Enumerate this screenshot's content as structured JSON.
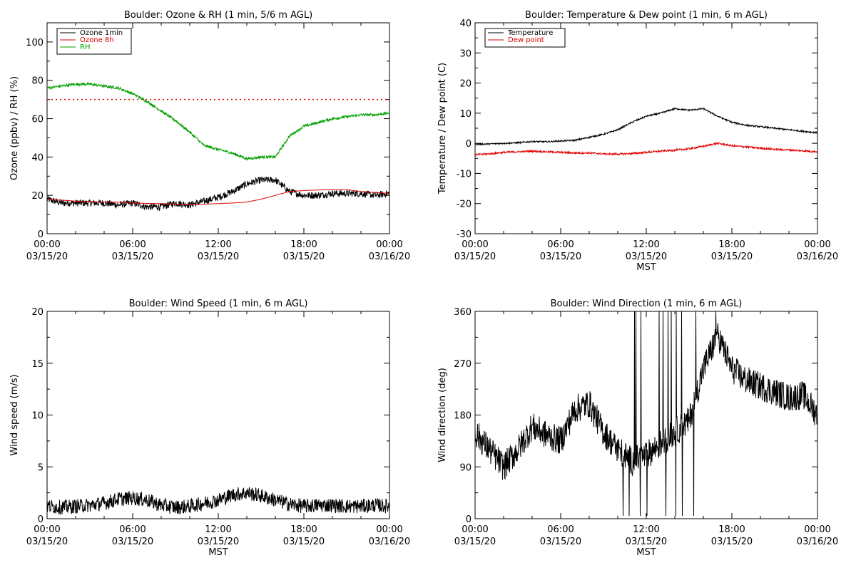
{
  "chart_data": [
    {
      "type": "line",
      "title": "Boulder: Ozone & RH (1 min, 5/6 m AGL)",
      "ylabel": "Ozone (ppbv) / RH (%)",
      "xlabel": "",
      "ylim": [
        0,
        110
      ],
      "yticks": [
        "0",
        "20",
        "40",
        "60",
        "80",
        "100"
      ],
      "xtick_time": [
        "00:00",
        "06:00",
        "12:00",
        "18:00",
        "00:00"
      ],
      "xtick_date": [
        "03/15/20",
        "03/15/20",
        "03/15/20",
        "03/15/20",
        "03/16/20"
      ],
      "legend_position": "top-left",
      "x_hours": [
        0,
        1,
        2,
        3,
        4,
        5,
        6,
        7,
        8,
        9,
        10,
        11,
        12,
        13,
        14,
        15,
        16,
        17,
        18,
        19,
        20,
        21,
        22,
        23,
        24
      ],
      "series": [
        {
          "name": "Ozone 1min",
          "color": "#000000",
          "noise": 1.8,
          "values": [
            18,
            16,
            16,
            16,
            16,
            15,
            16,
            14,
            14,
            16,
            15,
            17,
            19,
            22,
            26,
            28,
            28,
            22,
            20,
            20,
            21,
            21,
            21,
            20,
            21
          ]
        },
        {
          "name": "Ozone 8h",
          "color": "#e00000",
          "noise": 0,
          "values": [
            18,
            17.5,
            17,
            16.8,
            16.5,
            16.5,
            16,
            15.8,
            15.7,
            15.4,
            15.3,
            15.4,
            15.7,
            16,
            16.5,
            18,
            20,
            22,
            22.5,
            22.8,
            23,
            23,
            22,
            21.5,
            21
          ]
        },
        {
          "name": "RH",
          "color": "#00a000",
          "noise": 0.7,
          "values": [
            76,
            77,
            78,
            78,
            77,
            76,
            73,
            69,
            64,
            59,
            53,
            46,
            44,
            42,
            39,
            40,
            40,
            51,
            56,
            58,
            60,
            61,
            62,
            62,
            63
          ]
        }
      ],
      "reference_line": {
        "value": 70,
        "color": "#e00000",
        "style": "dotted"
      }
    },
    {
      "type": "line",
      "title": "Boulder: Temperature & Dew point (1 min, 6 m AGL)",
      "ylabel": "Temperature / Dew point (C)",
      "xlabel": "MST",
      "ylim": [
        -30,
        40
      ],
      "yticks": [
        "-30",
        "-20",
        "-10",
        "0",
        "10",
        "20",
        "30",
        "40"
      ],
      "xtick_time": [
        "00:00",
        "06:00",
        "12:00",
        "18:00",
        "00:00"
      ],
      "xtick_date": [
        "03/15/20",
        "03/15/20",
        "03/15/20",
        "03/15/20",
        "03/16/20"
      ],
      "legend_position": "top-left",
      "x_hours": [
        0,
        1,
        2,
        3,
        4,
        5,
        6,
        7,
        8,
        9,
        10,
        11,
        12,
        13,
        14,
        15,
        16,
        17,
        18,
        19,
        20,
        21,
        22,
        23,
        24
      ],
      "series": [
        {
          "name": "Temperature",
          "color": "#000000",
          "noise": 0.25,
          "values": [
            -0.3,
            -0.2,
            0,
            0.2,
            0.6,
            0.5,
            0.8,
            1,
            2,
            3,
            4.5,
            7,
            9,
            10,
            11.5,
            11,
            11.5,
            9,
            7,
            6,
            5.5,
            5,
            4.5,
            4,
            3.5
          ]
        },
        {
          "name": "Dew point",
          "color": "#e00000",
          "noise": 0.3,
          "values": [
            -3.8,
            -3.5,
            -3,
            -2.8,
            -2.6,
            -2.8,
            -3,
            -3.2,
            -3.2,
            -3.5,
            -3.6,
            -3.4,
            -3,
            -2.6,
            -2.3,
            -1.8,
            -1,
            0,
            -0.8,
            -1.2,
            -1.6,
            -2,
            -2.2,
            -2.5,
            -2.8
          ]
        }
      ]
    },
    {
      "type": "line",
      "title": "Boulder: Wind Speed (1 min, 6 m AGL)",
      "ylabel": "Wind speed (m/s)",
      "xlabel": "MST",
      "ylim": [
        0,
        20
      ],
      "yticks": [
        "0",
        "5",
        "10",
        "15",
        "20"
      ],
      "xtick_time": [
        "00:00",
        "06:00",
        "12:00",
        "18:00",
        "00:00"
      ],
      "xtick_date": [
        "03/15/20",
        "03/15/20",
        "03/15/20",
        "03/15/20",
        "03/16/20"
      ],
      "x_hours": [
        0,
        1,
        2,
        3,
        4,
        5,
        6,
        7,
        8,
        9,
        10,
        11,
        12,
        13,
        14,
        15,
        16,
        17,
        18,
        19,
        20,
        21,
        22,
        23,
        24
      ],
      "series": [
        {
          "name": "",
          "color": "#000000",
          "noise": 0.7,
          "values": [
            1.2,
            1.1,
            1.2,
            1.3,
            1.5,
            1.9,
            2.0,
            1.8,
            1.3,
            1.1,
            1.2,
            1.5,
            1.8,
            2.3,
            2.5,
            2.2,
            1.8,
            1.4,
            1.2,
            1.3,
            1.3,
            1.2,
            1.2,
            1.3,
            1.2
          ]
        }
      ]
    },
    {
      "type": "line",
      "title": "Boulder: Wind Direction (1 min, 6 m AGL)",
      "ylabel": "Wind direction (deg)",
      "xlabel": "MST",
      "ylim": [
        0,
        360
      ],
      "yticks": [
        "0",
        "90",
        "180",
        "270",
        "360"
      ],
      "xtick_time": [
        "00:00",
        "06:00",
        "12:00",
        "18:00",
        "00:00"
      ],
      "xtick_date": [
        "03/15/20",
        "03/15/20",
        "03/15/20",
        "03/15/20",
        "03/16/20"
      ],
      "x_hours": [
        0,
        1,
        2,
        3,
        4,
        5,
        6,
        7,
        8,
        9,
        10,
        11,
        12,
        13,
        14,
        15,
        16,
        17,
        18,
        19,
        20,
        21,
        22,
        23,
        24
      ],
      "series": [
        {
          "name": "",
          "color": "#000000",
          "noise": 25,
          "values": [
            150,
            120,
            90,
            120,
            160,
            145,
            135,
            190,
            200,
            150,
            120,
            100,
            110,
            130,
            150,
            170,
            260,
            320,
            260,
            240,
            230,
            220,
            210,
            215,
            180
          ]
        }
      ]
    }
  ]
}
